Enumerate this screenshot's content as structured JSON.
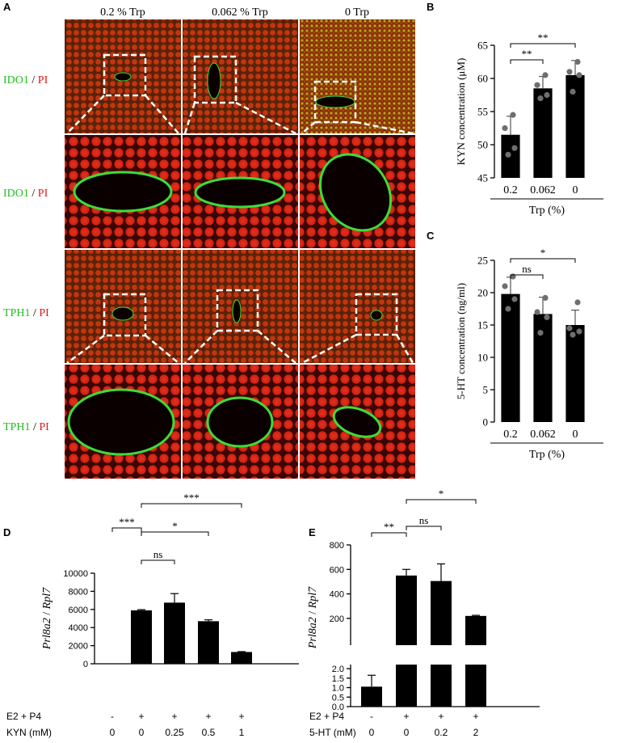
{
  "panel_labels": {
    "a": "A",
    "b": "B",
    "c": "C",
    "d": "D",
    "e": "E"
  },
  "panel_a": {
    "columns": [
      "0.2 % Trp",
      "0.062 % Trp",
      "0 Trp"
    ],
    "row_labels": [
      {
        "green": "IDO1",
        "sep": " / ",
        "red": "PI"
      },
      {
        "green": "IDO1",
        "sep": " / ",
        "red": "PI"
      },
      {
        "green": "TPH1",
        "sep": " / ",
        "red": "PI"
      },
      {
        "green": "TPH1",
        "sep": " / ",
        "red": "PI"
      }
    ],
    "colors": {
      "tissue_red": "#c81e10",
      "stain_green": "#3ddc3a"
    }
  },
  "chart_data": [
    {
      "id": "B",
      "type": "bar",
      "categories": [
        "0.2",
        "0.062",
        "0"
      ],
      "values": [
        51.5,
        58.5,
        60.5
      ],
      "errors": [
        2.8,
        1.8,
        2.2
      ],
      "points": [
        [
          54.5,
          52.5,
          49.5,
          48.5
        ],
        [
          60.5,
          59.0,
          57.5,
          57.0
        ],
        [
          62.5,
          61.0,
          60.5,
          58.0
        ]
      ],
      "xlabel": "Trp (%)",
      "ylabel": "KYN concentration (μM)",
      "ylim": [
        45,
        65
      ],
      "yticks": [
        "45",
        "50",
        "55",
        "60",
        "65"
      ],
      "significance": [
        {
          "from": "0.2",
          "to": "0.062",
          "label": "**"
        },
        {
          "from": "0.2",
          "to": "0",
          "label": "**"
        }
      ]
    },
    {
      "id": "C",
      "type": "bar",
      "categories": [
        "0.2",
        "0.062",
        "0"
      ],
      "values": [
        19.8,
        16.7,
        15.0
      ],
      "errors": [
        2.6,
        2.6,
        2.3
      ],
      "points": [
        [
          22.5,
          21.0,
          19.0,
          17.5
        ],
        [
          19.2,
          17.0,
          16.2,
          13.8
        ],
        [
          18.5,
          14.5,
          14.0,
          13.5
        ]
      ],
      "xlabel": "Trp (%)",
      "ylabel": "5-HT concentration (ng/ml)",
      "ylim": [
        0,
        25
      ],
      "yticks": [
        "0",
        "5",
        "10",
        "15",
        "20",
        "25"
      ],
      "significance": [
        {
          "from": "0.2",
          "to": "0.062",
          "label": "ns"
        },
        {
          "from": "0.2",
          "to": "0",
          "label": "*"
        }
      ]
    },
    {
      "id": "D",
      "type": "bar",
      "ylabel_italic": "Prl8a2",
      "ylabel_sep": " / ",
      "ylabel_italic2": "Rpl7",
      "ylim": [
        0,
        10000
      ],
      "yticks": [
        "0",
        "2000",
        "4000",
        "6000",
        "8000",
        "10000"
      ],
      "values": [
        0,
        5900,
        6750,
        4700,
        1300
      ],
      "errors": [
        0,
        80,
        1000,
        150,
        40
      ],
      "rows": [
        {
          "label": "E2 + P4",
          "values": [
            "-",
            "+",
            "+",
            "+",
            "+"
          ]
        },
        {
          "label": "KYN (mM)",
          "values": [
            "0",
            "0",
            "0.25",
            "0.5",
            "1"
          ]
        }
      ],
      "significance": [
        {
          "from": 1,
          "to": 2,
          "label": "ns"
        },
        {
          "from": 1,
          "to": 3,
          "label": "*"
        },
        {
          "from": 1,
          "to": 4,
          "label": "***"
        },
        {
          "from": 0,
          "to": 1,
          "label": "***"
        }
      ]
    },
    {
      "id": "E",
      "type": "bar",
      "ylabel_italic": "Prl8a2",
      "ylabel_sep": " / ",
      "ylabel_italic2": "Rpl7",
      "broken_axis": true,
      "upper_ylim": [
        100,
        800
      ],
      "upper_yticks": [
        "200",
        "400",
        "600",
        "800"
      ],
      "lower_ylim": [
        0,
        2
      ],
      "lower_yticks": [
        "0.0",
        "0.5",
        "1.0",
        "1.5",
        "2.0"
      ],
      "values": [
        1.05,
        550,
        505,
        220
      ],
      "errors": [
        0.6,
        50,
        140,
        5
      ],
      "rows": [
        {
          "label": "E2 + P4",
          "values": [
            "-",
            "+",
            "+",
            "+"
          ]
        },
        {
          "label": "5-HT (mM)",
          "values": [
            "0",
            "0",
            "0.2",
            "2"
          ]
        }
      ],
      "significance": [
        {
          "from": 0,
          "to": 1,
          "label": "**"
        },
        {
          "from": 1,
          "to": 2,
          "label": "ns"
        },
        {
          "from": 1,
          "to": 3,
          "label": "*"
        }
      ]
    }
  ]
}
